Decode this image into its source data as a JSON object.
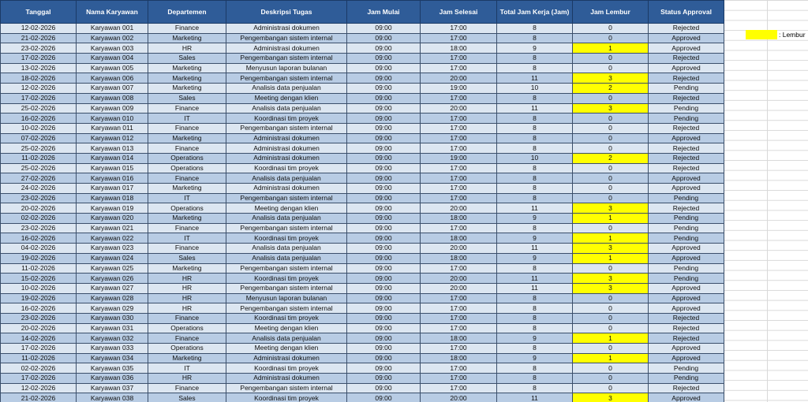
{
  "table": {
    "headers": [
      "Tanggal",
      "Nama Karyawan",
      "Departemen",
      "Deskripsi Tugas",
      "Jam Mulai",
      "Jam Selesai",
      "Total Jam Kerja (Jam)",
      "Jam Lembur",
      "Status Approval"
    ],
    "rows": [
      [
        "12-02-2026",
        "Karyawan 001",
        "Finance",
        "Administrasi dokumen",
        "09:00",
        "17:00",
        8,
        0,
        "Rejected"
      ],
      [
        "21-02-2026",
        "Karyawan 002",
        "Marketing",
        "Pengembangan sistem internal",
        "09:00",
        "17:00",
        8,
        0,
        "Approved"
      ],
      [
        "23-02-2026",
        "Karyawan 003",
        "HR",
        "Administrasi dokumen",
        "09:00",
        "18:00",
        9,
        1,
        "Approved"
      ],
      [
        "17-02-2026",
        "Karyawan 004",
        "Sales",
        "Pengembangan sistem internal",
        "09:00",
        "17:00",
        8,
        0,
        "Rejected"
      ],
      [
        "13-02-2026",
        "Karyawan 005",
        "Marketing",
        "Menyusun laporan bulanan",
        "09:00",
        "17:00",
        8,
        0,
        "Approved"
      ],
      [
        "18-02-2026",
        "Karyawan 006",
        "Marketing",
        "Pengembangan sistem internal",
        "09:00",
        "20:00",
        11,
        3,
        "Rejected"
      ],
      [
        "12-02-2026",
        "Karyawan 007",
        "Marketing",
        "Analisis data penjualan",
        "09:00",
        "19:00",
        10,
        2,
        "Pending"
      ],
      [
        "17-02-2026",
        "Karyawan 008",
        "Sales",
        "Meeting dengan klien",
        "09:00",
        "17:00",
        8,
        0,
        "Rejected"
      ],
      [
        "25-02-2026",
        "Karyawan 009",
        "Finance",
        "Analisis data penjualan",
        "09:00",
        "20:00",
        11,
        3,
        "Pending"
      ],
      [
        "16-02-2026",
        "Karyawan 010",
        "IT",
        "Koordinasi tim proyek",
        "09:00",
        "17:00",
        8,
        0,
        "Pending"
      ],
      [
        "10-02-2026",
        "Karyawan 011",
        "Finance",
        "Pengembangan sistem internal",
        "09:00",
        "17:00",
        8,
        0,
        "Rejected"
      ],
      [
        "07-02-2026",
        "Karyawan 012",
        "Marketing",
        "Administrasi dokumen",
        "09:00",
        "17:00",
        8,
        0,
        "Approved"
      ],
      [
        "25-02-2026",
        "Karyawan 013",
        "Finance",
        "Administrasi dokumen",
        "09:00",
        "17:00",
        8,
        0,
        "Rejected"
      ],
      [
        "11-02-2026",
        "Karyawan 014",
        "Operations",
        "Administrasi dokumen",
        "09:00",
        "19:00",
        10,
        2,
        "Rejected"
      ],
      [
        "25-02-2026",
        "Karyawan 015",
        "Operations",
        "Koordinasi tim proyek",
        "09:00",
        "17:00",
        8,
        0,
        "Rejected"
      ],
      [
        "27-02-2026",
        "Karyawan 016",
        "Finance",
        "Analisis data penjualan",
        "09:00",
        "17:00",
        8,
        0,
        "Approved"
      ],
      [
        "24-02-2026",
        "Karyawan 017",
        "Marketing",
        "Administrasi dokumen",
        "09:00",
        "17:00",
        8,
        0,
        "Approved"
      ],
      [
        "23-02-2026",
        "Karyawan 018",
        "IT",
        "Pengembangan sistem internal",
        "09:00",
        "17:00",
        8,
        0,
        "Pending"
      ],
      [
        "20-02-2026",
        "Karyawan 019",
        "Operations",
        "Meeting dengan klien",
        "09:00",
        "20:00",
        11,
        3,
        "Rejected"
      ],
      [
        "02-02-2026",
        "Karyawan 020",
        "Marketing",
        "Analisis data penjualan",
        "09:00",
        "18:00",
        9,
        1,
        "Pending"
      ],
      [
        "23-02-2026",
        "Karyawan 021",
        "Finance",
        "Pengembangan sistem internal",
        "09:00",
        "17:00",
        8,
        0,
        "Pending"
      ],
      [
        "16-02-2026",
        "Karyawan 022",
        "IT",
        "Koordinasi tim proyek",
        "09:00",
        "18:00",
        9,
        1,
        "Pending"
      ],
      [
        "04-02-2026",
        "Karyawan 023",
        "Finance",
        "Analisis data penjualan",
        "09:00",
        "20:00",
        11,
        3,
        "Approved"
      ],
      [
        "19-02-2026",
        "Karyawan 024",
        "Sales",
        "Analisis data penjualan",
        "09:00",
        "18:00",
        9,
        1,
        "Approved"
      ],
      [
        "11-02-2026",
        "Karyawan 025",
        "Marketing",
        "Pengembangan sistem internal",
        "09:00",
        "17:00",
        8,
        0,
        "Pending"
      ],
      [
        "15-02-2026",
        "Karyawan 026",
        "HR",
        "Koordinasi tim proyek",
        "09:00",
        "20:00",
        11,
        3,
        "Pending"
      ],
      [
        "10-02-2026",
        "Karyawan 027",
        "HR",
        "Pengembangan sistem internal",
        "09:00",
        "20:00",
        11,
        3,
        "Approved"
      ],
      [
        "19-02-2026",
        "Karyawan 028",
        "HR",
        "Menyusun laporan bulanan",
        "09:00",
        "17:00",
        8,
        0,
        "Approved"
      ],
      [
        "16-02-2026",
        "Karyawan 029",
        "HR",
        "Pengembangan sistem internal",
        "09:00",
        "17:00",
        8,
        0,
        "Approved"
      ],
      [
        "23-02-2026",
        "Karyawan 030",
        "Finance",
        "Koordinasi tim proyek",
        "09:00",
        "17:00",
        8,
        0,
        "Rejected"
      ],
      [
        "20-02-2026",
        "Karyawan 031",
        "Operations",
        "Meeting dengan klien",
        "09:00",
        "17:00",
        8,
        0,
        "Rejected"
      ],
      [
        "14-02-2026",
        "Karyawan 032",
        "Finance",
        "Analisis data penjualan",
        "09:00",
        "18:00",
        9,
        1,
        "Rejected"
      ],
      [
        "17-02-2026",
        "Karyawan 033",
        "Operations",
        "Meeting dengan klien",
        "09:00",
        "17:00",
        8,
        0,
        "Approved"
      ],
      [
        "11-02-2026",
        "Karyawan 034",
        "Marketing",
        "Administrasi dokumen",
        "09:00",
        "18:00",
        9,
        1,
        "Approved"
      ],
      [
        "02-02-2026",
        "Karyawan 035",
        "IT",
        "Koordinasi tim proyek",
        "09:00",
        "17:00",
        8,
        0,
        "Pending"
      ],
      [
        "17-02-2026",
        "Karyawan 036",
        "HR",
        "Administrasi dokumen",
        "09:00",
        "17:00",
        8,
        0,
        "Pending"
      ],
      [
        "12-02-2026",
        "Karyawan 037",
        "Finance",
        "Pengembangan sistem internal",
        "09:00",
        "17:00",
        8,
        0,
        "Rejected"
      ],
      [
        "21-02-2026",
        "Karyawan 038",
        "Sales",
        "Koordinasi tim proyek",
        "09:00",
        "20:00",
        11,
        3,
        "Approved"
      ]
    ]
  },
  "legend": {
    "label": ": Lembur",
    "color": "#ffff00"
  }
}
